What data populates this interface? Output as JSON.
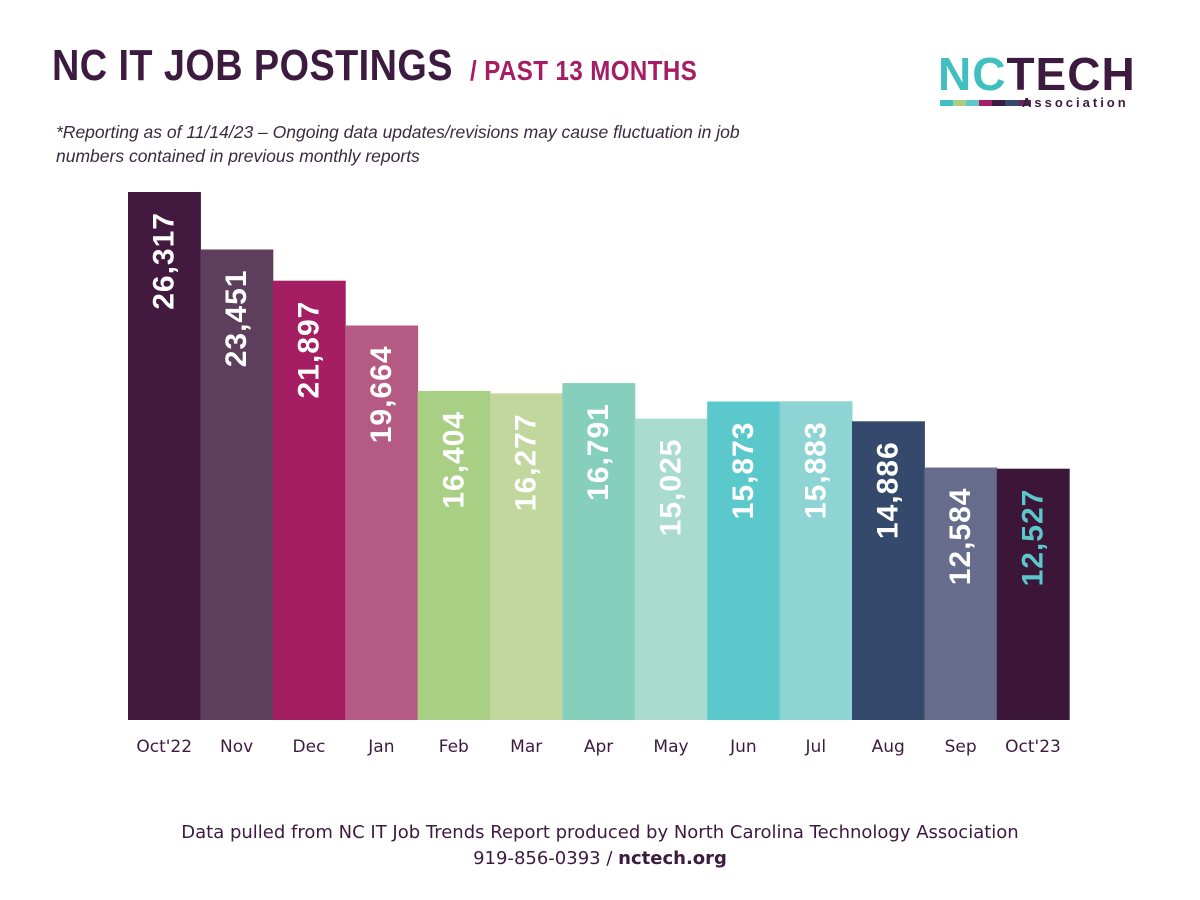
{
  "title": {
    "main": "NC IT JOB POSTINGS",
    "sub": "/ PAST 13 MONTHS"
  },
  "note": "*Reporting as of 11/14/23 – Ongoing data updates/revisions may cause fluctuation in job numbers contained in previous monthly reports",
  "logo": {
    "nc": "NC",
    "tech": "TECH",
    "association": "Association",
    "strip_colors": [
      "#3fbfbf",
      "#a8cf84",
      "#5bc9cb",
      "#a51d63",
      "#3d1a3f",
      "#34496b",
      "#5d2d55"
    ]
  },
  "chart_data": {
    "type": "bar",
    "title": "NC IT JOB POSTINGS / PAST 13 MONTHS",
    "categories": [
      "Oct'22",
      "Nov",
      "Dec",
      "Jan",
      "Feb",
      "Mar",
      "Apr",
      "May",
      "Jun",
      "Jul",
      "Aug",
      "Sep",
      "Oct'23"
    ],
    "values": [
      26317,
      23451,
      21897,
      19664,
      16404,
      16277,
      16791,
      15025,
      15873,
      15883,
      14886,
      12584,
      12527
    ],
    "value_labels": [
      "26,317",
      "23,451",
      "21,897",
      "19,664",
      "16,404",
      "16,277",
      "16,791",
      "15,025",
      "15,873",
      "15,883",
      "14,886",
      "12,584",
      "12,527"
    ],
    "bar_colors": [
      "#421a40",
      "#5d3e5c",
      "#a51d63",
      "#b55a82",
      "#a8cf84",
      "#c1d79e",
      "#86cfbc",
      "#a9dccd",
      "#5bc9cb",
      "#8fd4d5",
      "#34496b",
      "#676c8d",
      "#3c1638"
    ],
    "label_colors": [
      "#ffffff",
      "#ffffff",
      "#ffffff",
      "#ffffff",
      "#ffffff",
      "#ffffff",
      "#ffffff",
      "#ffffff",
      "#ffffff",
      "#ffffff",
      "#ffffff",
      "#ffffff",
      "#5bc9cb"
    ],
    "ylim": [
      0,
      26317
    ],
    "xlabel": "",
    "ylabel": "",
    "grid": false,
    "legend": "none"
  },
  "footer": {
    "line1": "Data pulled from NC IT Job Trends Report produced by North Carolina Technology Association",
    "phone": "919-856-0393",
    "separator": "/",
    "website": "nctech.org"
  }
}
